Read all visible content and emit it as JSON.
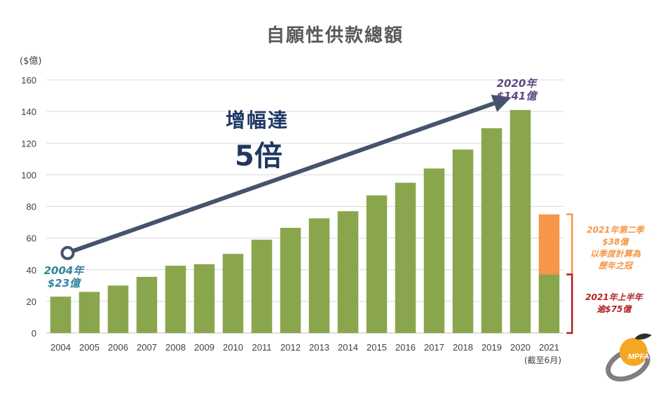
{
  "chart_data": {
    "type": "bar",
    "title": "自願性供款總額",
    "ylabel": "($億)",
    "ylim": [
      0,
      160
    ],
    "yticks": [
      0,
      20,
      40,
      60,
      80,
      100,
      120,
      140,
      160
    ],
    "grid": true,
    "categories": [
      "2004",
      "2005",
      "2006",
      "2007",
      "2008",
      "2009",
      "2010",
      "2011",
      "2012",
      "2013",
      "2014",
      "2015",
      "2016",
      "2017",
      "2018",
      "2019",
      "2020",
      "2021"
    ],
    "x_note": "(截至6月)",
    "series": [
      {
        "values": [
          23,
          26,
          30,
          35.5,
          42.5,
          43.5,
          50,
          59,
          66.5,
          72.5,
          77,
          87,
          95,
          104,
          116,
          129.5,
          141,
          37
        ],
        "color": "#8aa64d"
      },
      {
        "values": [
          0,
          0,
          0,
          0,
          0,
          0,
          0,
          0,
          0,
          0,
          0,
          0,
          0,
          0,
          0,
          0,
          0,
          38
        ],
        "color": "#f79646"
      }
    ],
    "annotations": {
      "growth_line1": "增幅達",
      "growth_line2": "5倍",
      "start_line1": "2004年",
      "start_line2": "$23億",
      "end_line1": "2020年",
      "end_line2": "$141億",
      "q2_line1": "2021年第二季",
      "q2_line2": "$38億",
      "q2_line3": "以季度計算為",
      "q2_line4": "歷年之冠",
      "h1_line1": "2021年上半年",
      "h1_line2": "逾$75億"
    },
    "colors": {
      "arrow": "#44546a",
      "bracket_q2": "#f79646",
      "bracket_h1": "#b22222",
      "grid": "#d9d9d9"
    }
  },
  "logo": {
    "text": "MPFA",
    "icon": "orange-fruit-logo"
  }
}
